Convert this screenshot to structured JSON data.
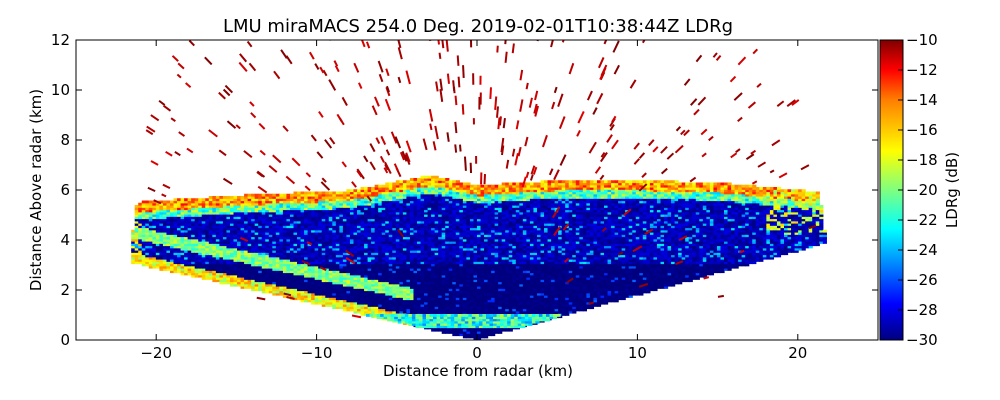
{
  "chart_data": {
    "type": "heatmap",
    "title": "LMU miraMACS 254.0 Deg. 2019-02-01T10:38:44Z  LDRg",
    "xlabel": "Distance from radar (km)",
    "ylabel": "Distance Above radar  (km)",
    "xlim": [
      -25,
      25
    ],
    "ylim": [
      0,
      12
    ],
    "x_ticks": [
      -20,
      -10,
      0,
      10,
      20
    ],
    "y_ticks": [
      0,
      2,
      4,
      6,
      8,
      10,
      12
    ],
    "colorbar": {
      "label": "LDRg (dB)",
      "range": [
        -30,
        -10
      ],
      "ticks": [
        -30,
        -28,
        -26,
        -24,
        -22,
        -20,
        -18,
        -16,
        -14,
        -12,
        -10
      ],
      "colormap": [
        "#00007f",
        "#0000ff",
        "#007fff",
        "#00ffff",
        "#7fff7f",
        "#ffff00",
        "#ff7f00",
        "#ff0000",
        "#7f0000"
      ]
    },
    "scan": {
      "elevation_deg": 254.0,
      "max_range_km": 22,
      "echo_layer": {
        "base_km": 3.0,
        "top_km": [
          [
            -22,
            5.3
          ],
          [
            -15,
            5.6
          ],
          [
            -8,
            5.8
          ],
          [
            -3,
            6.4
          ],
          [
            0,
            6.0
          ],
          [
            5,
            6.2
          ],
          [
            10,
            6.2
          ],
          [
            15,
            6.1
          ],
          [
            22,
            5.7
          ]
        ],
        "typical_ldr_db": -28,
        "edge_ldr_db": -20
      },
      "lower_band_km": [
        0.5,
        1.0
      ],
      "lower_band_ldr_db": -22,
      "sparse_returns_ldr_db": -10
    }
  }
}
